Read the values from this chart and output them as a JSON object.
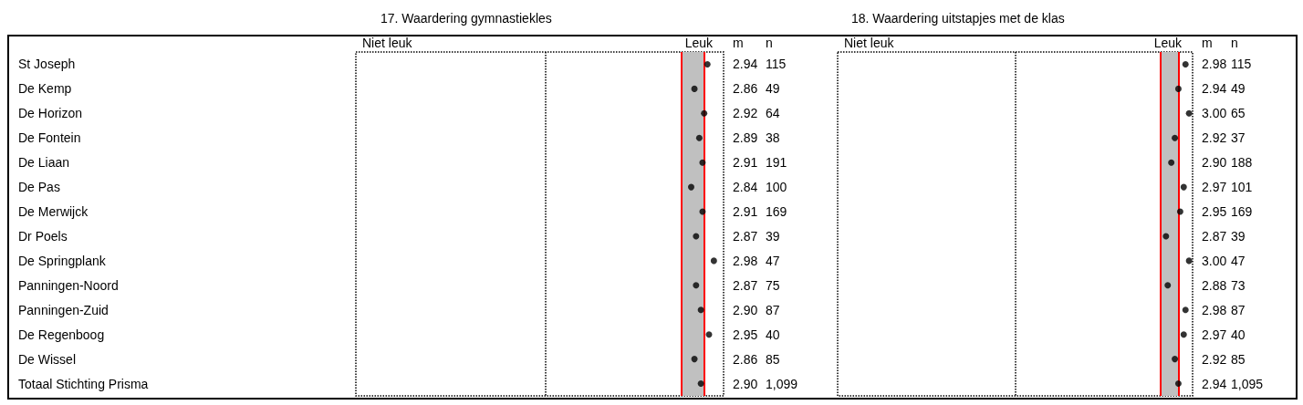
{
  "chart_data": [
    {
      "type": "scatter",
      "title": "17. Waardering gymnastiekles",
      "orientation": "horizontal",
      "marker": "circle",
      "tick_labels": "y",
      "annotations": [
        "Niet leuk",
        "Leuk"
      ],
      "categories": [
        "St Joseph",
        "De Kemp",
        "De Horizon",
        "De Fontein",
        "De Liaan",
        "De Pas",
        "De Merwijck",
        "Dr Poels",
        "De Springplank",
        "Panningen-Noord",
        "Panningen-Zuid",
        "De Regenboog",
        "De Wissel",
        "Totaal Stichting Prisma"
      ],
      "xlim": [
        0.77,
        3.04
      ],
      "bands": [
        {
          "axis": "x",
          "from": 2.78,
          "to": 2.92,
          "color": "#c0c0c0"
        }
      ],
      "ref_lines": [
        {
          "axis": "x",
          "value": 2.78,
          "color": "#ff0000",
          "line_style": "solid"
        },
        {
          "axis": "x",
          "value": 2.92,
          "color": "#ff0000",
          "line_style": "solid"
        },
        {
          "axis": "x",
          "value": 1.94,
          "color": "#000000",
          "line_style": "dotted"
        }
      ],
      "series": [
        {
          "name": "m",
          "color": "#000000",
          "values": [
            2.94,
            2.86,
            2.92,
            2.89,
            2.91,
            2.84,
            2.91,
            2.87,
            2.98,
            2.87,
            2.9,
            2.95,
            2.86,
            2.9
          ],
          "value_labels": [
            "2.94",
            "2.86",
            "2.92",
            "2.89",
            "2.91",
            "2.84",
            "2.91",
            "2.87",
            "2.98",
            "2.87",
            "2.90",
            "2.95",
            "2.86",
            "2.90"
          ]
        }
      ]
    },
    {
      "type": "other",
      "categories": [
        null,
        null,
        null,
        null,
        null,
        null,
        null,
        null,
        null,
        null,
        null,
        null,
        null,
        null
      ],
      "series": [
        {
          "name": "n",
          "values": [
            115,
            49,
            64,
            38,
            191,
            100,
            169,
            39,
            47,
            75,
            87,
            40,
            85,
            1099
          ],
          "value_labels": [
            "115",
            "49",
            "64",
            "38",
            "191",
            "100",
            "169",
            "39",
            "47",
            "75",
            "87",
            "40",
            "85",
            "1,099"
          ]
        }
      ]
    },
    {
      "type": "scatter",
      "title": "18. Waardering uitstapjes met de klas",
      "orientation": "horizontal",
      "marker": "circle",
      "tick_labels": false,
      "annotations": [
        "Niet leuk",
        "Leuk"
      ],
      "categories": [
        null,
        null,
        null,
        null,
        null,
        null,
        null,
        null,
        null,
        null,
        null,
        null,
        null,
        null
      ],
      "xlim": [
        1.02,
        3.02
      ],
      "bands": [
        {
          "axis": "x",
          "from": 2.84,
          "to": 2.94,
          "color": "#c0c0c0"
        }
      ],
      "ref_lines": [
        {
          "axis": "x",
          "value": 2.84,
          "color": "#ff0000",
          "line_style": "solid"
        },
        {
          "axis": "x",
          "value": 2.94,
          "color": "#ff0000",
          "line_style": "solid"
        },
        {
          "axis": "x",
          "value": 2.02,
          "color": "#000000",
          "line_style": "dotted"
        }
      ],
      "series": [
        {
          "name": "m",
          "color": "#000000",
          "values": [
            2.98,
            2.94,
            3.0,
            2.92,
            2.9,
            2.97,
            2.95,
            2.87,
            3.0,
            2.88,
            2.98,
            2.97,
            2.92,
            2.94
          ],
          "value_labels": [
            "2.98",
            "2.94",
            "3.00",
            "2.92",
            "2.90",
            "2.97",
            "2.95",
            "2.87",
            "3.00",
            "2.88",
            "2.98",
            "2.97",
            "2.92",
            "2.94"
          ]
        }
      ]
    },
    {
      "type": "other",
      "categories": [
        null,
        null,
        null,
        null,
        null,
        null,
        null,
        null,
        null,
        null,
        null,
        null,
        null,
        null
      ],
      "series": [
        {
          "name": "n",
          "values": [
            115,
            49,
            65,
            37,
            188,
            101,
            169,
            39,
            47,
            73,
            87,
            40,
            85,
            1095
          ],
          "value_labels": [
            "115",
            "49",
            "65",
            "37",
            "188",
            "101",
            "169",
            "39",
            "47",
            "73",
            "87",
            "40",
            "85",
            "1,095"
          ]
        }
      ]
    }
  ]
}
